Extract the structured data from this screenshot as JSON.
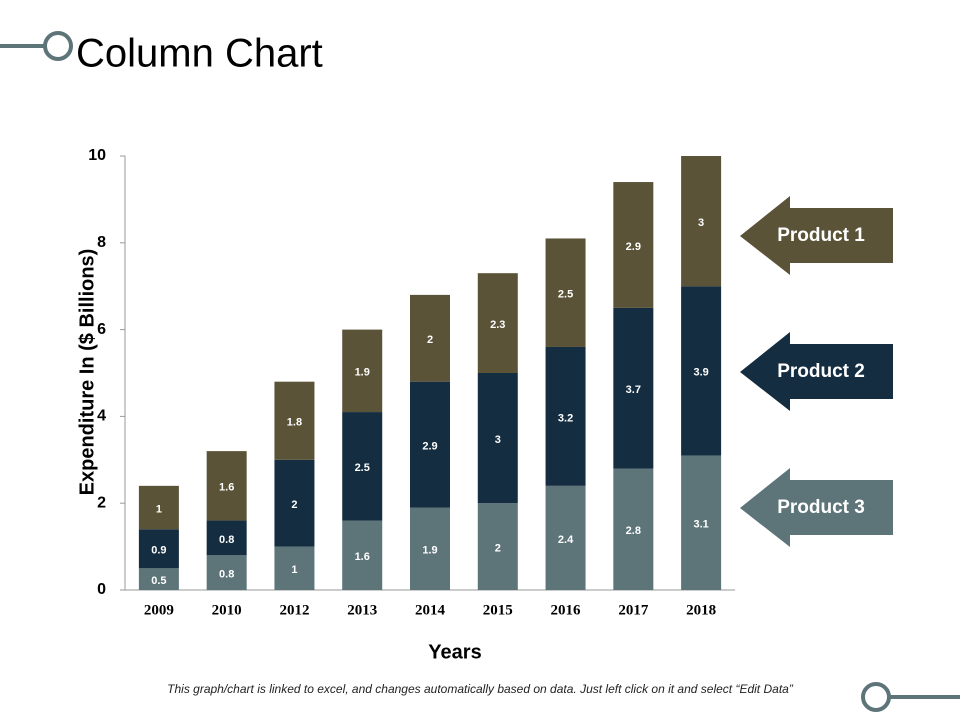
{
  "chart_data": {
    "type": "stacked_bar",
    "title": "Column Chart",
    "x_label": "Years",
    "y_label": "Expenditure In ($ Billions)",
    "categories": [
      "2009",
      "2010",
      "2012",
      "2013",
      "2014",
      "2015",
      "2016",
      "2017",
      "2018"
    ],
    "series": [
      {
        "name": "Product 1",
        "color": "#5a5338",
        "values": [
          1,
          1.6,
          1.8,
          1.9,
          2,
          2.3,
          2.5,
          2.9,
          3
        ]
      },
      {
        "name": "Product 2",
        "color": "#142d40",
        "values": [
          0.9,
          0.8,
          2,
          2.5,
          2.9,
          3,
          3.2,
          3.7,
          3.9
        ]
      },
      {
        "name": "Product 3",
        "color": "#5d7479",
        "values": [
          0.5,
          0.8,
          1,
          1.6,
          1.9,
          2,
          2.4,
          2.8,
          3.1
        ]
      }
    ],
    "ylim": [
      0,
      10
    ],
    "yticks": [
      0,
      2,
      4,
      6,
      8,
      10
    ],
    "grid": false,
    "legend": "right"
  },
  "footer": "This graph/chart is linked to excel, and changes automatically based on data. Just left click on it and select “Edit Data”"
}
